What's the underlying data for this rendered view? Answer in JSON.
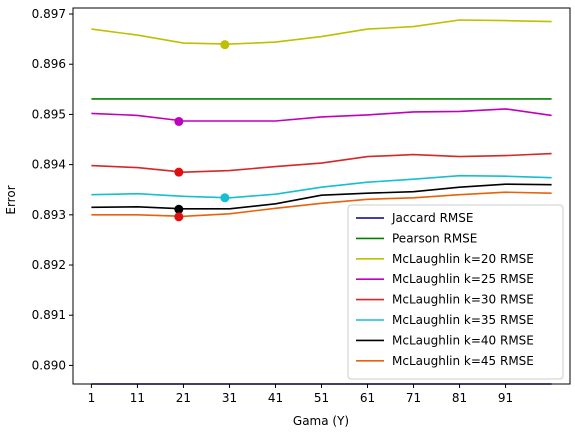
{
  "chart_data": {
    "type": "line",
    "title": "",
    "xlabel": "Gama (Y)",
    "ylabel": "Error",
    "x": [
      1,
      11,
      21,
      31,
      41,
      51,
      61,
      71,
      81,
      91,
      101
    ],
    "xticks": [
      "1",
      "11",
      "21",
      "31",
      "41",
      "51",
      "61",
      "71",
      "81",
      "91"
    ],
    "yticks": [
      "0.890",
      "0.891",
      "0.892",
      "0.893",
      "0.894",
      "0.895",
      "0.896",
      "0.897"
    ],
    "xlim": [
      -3,
      105
    ],
    "ylim": [
      0.88963,
      0.89712
    ],
    "grid": false,
    "legend_position": "lower-right",
    "series": [
      {
        "name": "Jaccard RMSE",
        "color": "#00008b",
        "values": [
          0.88963,
          0.88963,
          0.88963,
          0.88963,
          0.88963,
          0.88963,
          0.88963,
          0.88963,
          0.88963,
          0.88963,
          0.88963
        ]
      },
      {
        "name": "Pearson RMSE",
        "color": "#008000",
        "values": [
          0.89531,
          0.89531,
          0.89531,
          0.89531,
          0.89531,
          0.89531,
          0.89531,
          0.89531,
          0.89531,
          0.89531,
          0.89531
        ]
      },
      {
        "name": "McLaughlin k=20 RMSE",
        "color": "#bfbf00",
        "values": [
          0.8967,
          0.89658,
          0.89642,
          0.8964,
          0.89644,
          0.89655,
          0.8967,
          0.89675,
          0.89688,
          0.89687,
          0.89685
        ],
        "marker": {
          "x": 30,
          "y": 0.89639,
          "color": "#bfbf00"
        }
      },
      {
        "name": "McLaughlin k=25 RMSE",
        "color": "#bf00bf",
        "values": [
          0.89502,
          0.89498,
          0.89487,
          0.89487,
          0.89487,
          0.89495,
          0.89499,
          0.89505,
          0.89506,
          0.89511,
          0.89498
        ],
        "marker": {
          "x": 20,
          "y": 0.89486,
          "color": "#bf00bf"
        }
      },
      {
        "name": "McLaughlin k=30 RMSE",
        "color": "#d62728",
        "values": [
          0.89398,
          0.89394,
          0.89385,
          0.89388,
          0.89396,
          0.89403,
          0.89416,
          0.8942,
          0.89416,
          0.89418,
          0.89422
        ],
        "marker": {
          "x": 20,
          "y": 0.89385,
          "color": "#e01010"
        }
      },
      {
        "name": "McLaughlin k=35 RMSE",
        "color": "#17becf",
        "values": [
          0.8934,
          0.89342,
          0.89337,
          0.89334,
          0.89341,
          0.89355,
          0.89365,
          0.89371,
          0.89378,
          0.89377,
          0.89374
        ],
        "marker": {
          "x": 30,
          "y": 0.89334,
          "color": "#17becf"
        }
      },
      {
        "name": "McLaughlin k=40 RMSE",
        "color": "#000000",
        "values": [
          0.89315,
          0.89316,
          0.89312,
          0.89312,
          0.89322,
          0.89339,
          0.89343,
          0.89346,
          0.89355,
          0.89361,
          0.8936
        ],
        "marker": {
          "x": 20,
          "y": 0.89311,
          "color": "#000000"
        }
      },
      {
        "name": "McLaughlin k=45 RMSE",
        "color": "#e8620a",
        "values": [
          0.893,
          0.893,
          0.89297,
          0.89302,
          0.89313,
          0.89323,
          0.89331,
          0.89334,
          0.8934,
          0.89345,
          0.89343
        ],
        "marker": {
          "x": 20,
          "y": 0.89296,
          "color": "#e01010"
        }
      }
    ]
  }
}
